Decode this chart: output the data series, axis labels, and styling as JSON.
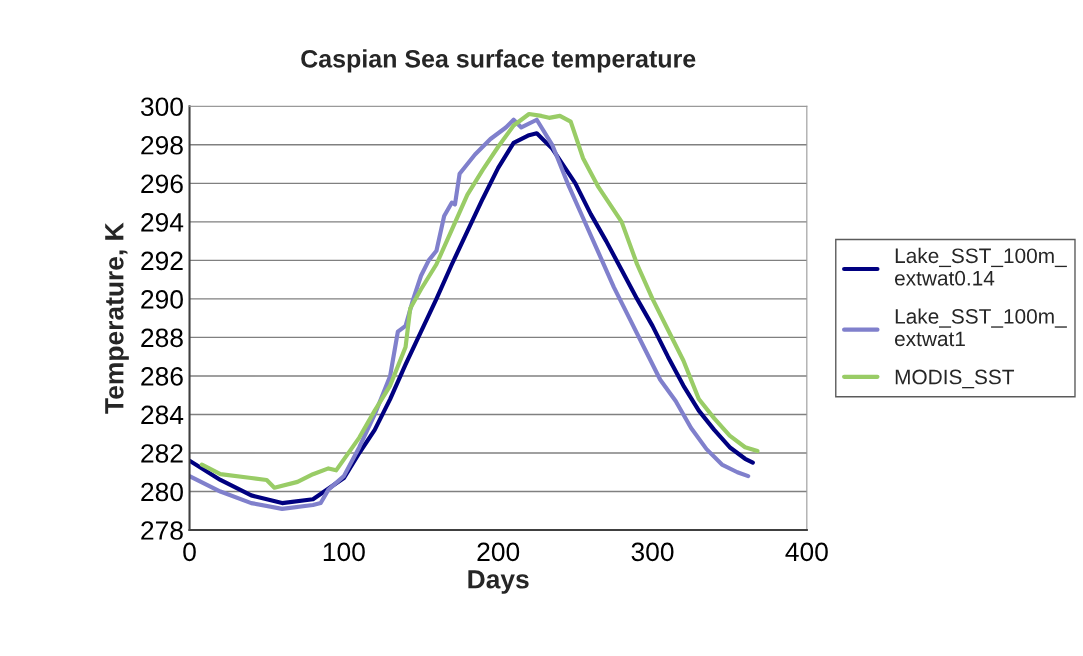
{
  "chart_data": {
    "type": "line",
    "title": "Caspian Sea surface temperature",
    "xlabel": "Days",
    "ylabel": "Temperature, K",
    "xlim": [
      0,
      400
    ],
    "xticks": [
      0,
      100,
      200,
      300,
      400
    ],
    "ylim": [
      278,
      300
    ],
    "yticks": [
      278,
      280,
      282,
      284,
      286,
      288,
      290,
      292,
      294,
      296,
      298,
      300
    ],
    "grid": "y",
    "legend": "right",
    "line_style": "solid",
    "marker": "none",
    "series": [
      {
        "name": "Lake_SST_100m_\nextwat0.14",
        "color": "#000080",
        "x": [
          0,
          20,
          40,
          60,
          80,
          100,
          110,
          120,
          130,
          140,
          150,
          160,
          170,
          180,
          190,
          200,
          210,
          220,
          225,
          235,
          250,
          260,
          270,
          280,
          290,
          300,
          310,
          320,
          330,
          340,
          350,
          360,
          365
        ],
        "values": [
          281.6,
          280.6,
          279.8,
          279.4,
          279.6,
          280.7,
          282,
          283.2,
          284.8,
          286.6,
          288.3,
          290,
          291.8,
          293.5,
          295.2,
          296.8,
          298.1,
          298.5,
          298.6,
          297.8,
          296,
          294.4,
          293,
          291.5,
          290,
          288.6,
          287,
          285.5,
          284.2,
          283.2,
          282.3,
          281.7,
          281.5
        ]
      },
      {
        "name": "Lake_SST_100m_\nextwat1",
        "color": "#8080cc",
        "x": [
          0,
          20,
          40,
          60,
          80,
          85,
          90,
          100,
          110,
          120,
          130,
          135,
          140,
          145,
          150,
          155,
          160,
          165,
          170,
          172,
          175,
          185,
          195,
          205,
          210,
          215,
          225,
          235,
          245,
          255,
          265,
          275,
          285,
          295,
          305,
          315,
          325,
          335,
          345,
          355,
          362
        ],
        "values": [
          280.8,
          280,
          279.4,
          279.1,
          279.3,
          279.4,
          280.1,
          280.8,
          282.3,
          284,
          286,
          288.3,
          288.6,
          290,
          291.2,
          292,
          292.5,
          294.3,
          295,
          294.9,
          296.5,
          297.5,
          298.3,
          298.9,
          299.3,
          298.9,
          299.3,
          298,
          296,
          294.2,
          292.4,
          290.6,
          289,
          287.4,
          285.8,
          284.7,
          283.3,
          282.2,
          281.4,
          281,
          280.8
        ]
      },
      {
        "name": "MODIS_SST",
        "color": "#99cc66",
        "x": [
          8,
          20,
          40,
          50,
          55,
          70,
          80,
          90,
          95,
          110,
          120,
          130,
          140,
          143,
          150,
          160,
          170,
          180,
          190,
          200,
          210,
          220,
          228,
          233,
          240,
          247,
          255,
          265,
          280,
          290,
          300,
          310,
          320,
          330,
          340,
          350,
          360,
          368
        ],
        "values": [
          281.4,
          280.9,
          280.7,
          280.6,
          280.2,
          280.5,
          280.9,
          281.2,
          281.1,
          282.8,
          284.2,
          285.5,
          287.5,
          289.5,
          290.5,
          291.8,
          293.6,
          295.4,
          296.7,
          297.9,
          299,
          299.6,
          299.5,
          299.4,
          299.5,
          299.2,
          297.3,
          295.8,
          294,
          291.8,
          290,
          288.4,
          286.8,
          284.8,
          283.8,
          282.9,
          282.3,
          282.1
        ]
      }
    ]
  }
}
